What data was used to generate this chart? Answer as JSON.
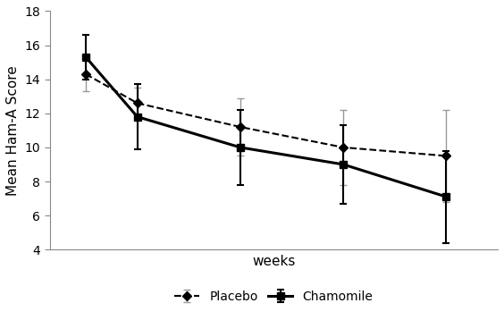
{
  "weeks": [
    1,
    2,
    4,
    6,
    8
  ],
  "placebo_means": [
    14.3,
    12.6,
    11.2,
    10.0,
    9.5
  ],
  "placebo_errors": [
    1.0,
    0.9,
    1.7,
    2.2,
    2.7
  ],
  "chamomile_means": [
    15.3,
    11.8,
    10.0,
    9.0,
    7.1
  ],
  "chamomile_errors": [
    1.3,
    1.9,
    2.2,
    2.3,
    2.7
  ],
  "placebo_line_color": "#000000",
  "placebo_error_color": "#999999",
  "chamomile_color": "#000000",
  "xlabel": "weeks",
  "ylabel": "Mean Ham-A Score",
  "ylim": [
    4,
    18
  ],
  "yticks": [
    4,
    6,
    8,
    10,
    12,
    14,
    16,
    18
  ],
  "legend_placebo": "Placebo",
  "legend_chamomile": "Chamomile",
  "background_color": "#ffffff"
}
